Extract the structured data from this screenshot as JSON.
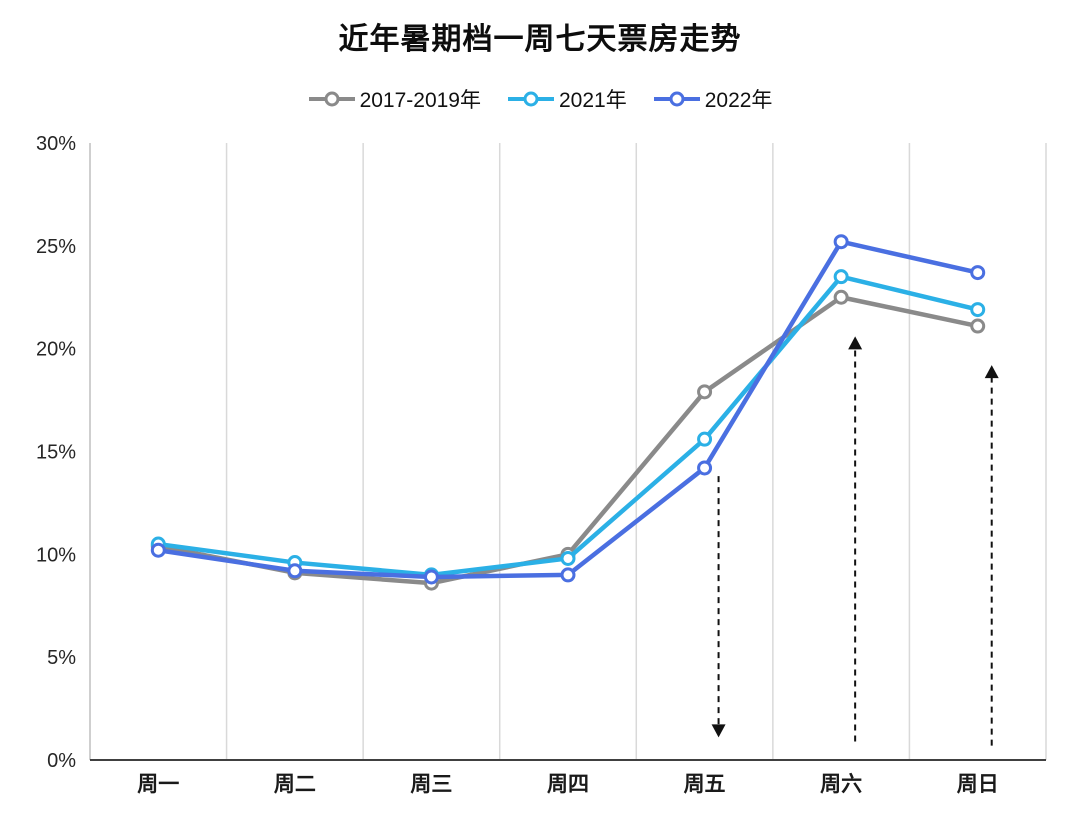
{
  "title": "近年暑期档一周七天票房走势",
  "chart_data": {
    "type": "line",
    "title": "近年暑期档一周七天票房走势",
    "categories": [
      "周一",
      "周二",
      "周三",
      "周四",
      "周五",
      "周六",
      "周日"
    ],
    "series": [
      {
        "name": "2017-2019年",
        "color": "#8A8A8A",
        "values": [
          10.4,
          9.1,
          8.6,
          10.0,
          17.9,
          22.5,
          21.1
        ]
      },
      {
        "name": "2021年",
        "color": "#2BB0E6",
        "values": [
          10.5,
          9.6,
          9.0,
          9.8,
          15.6,
          23.5,
          21.9
        ]
      },
      {
        "name": "2022年",
        "color": "#4A6FE1",
        "values": [
          10.2,
          9.2,
          8.9,
          9.0,
          14.2,
          25.2,
          23.7
        ]
      }
    ],
    "xlabel": "",
    "ylabel": "",
    "ylim": [
      0,
      30
    ],
    "ytick_step": 5,
    "ytick_labels": [
      "0%",
      "5%",
      "10%",
      "15%",
      "20%",
      "25%",
      "30%"
    ],
    "grid": "vertical",
    "legend_position": "top",
    "annotations": [
      {
        "type": "arrow",
        "category": "周五",
        "direction": "down",
        "from_pct": 13.8,
        "to_pct": 1.1
      },
      {
        "type": "arrow",
        "category": "周六",
        "direction": "up",
        "from_pct": 0.9,
        "to_pct": 20.6
      },
      {
        "type": "arrow",
        "category": "周日",
        "direction": "up",
        "from_pct": 0.7,
        "to_pct": 19.2
      }
    ]
  }
}
